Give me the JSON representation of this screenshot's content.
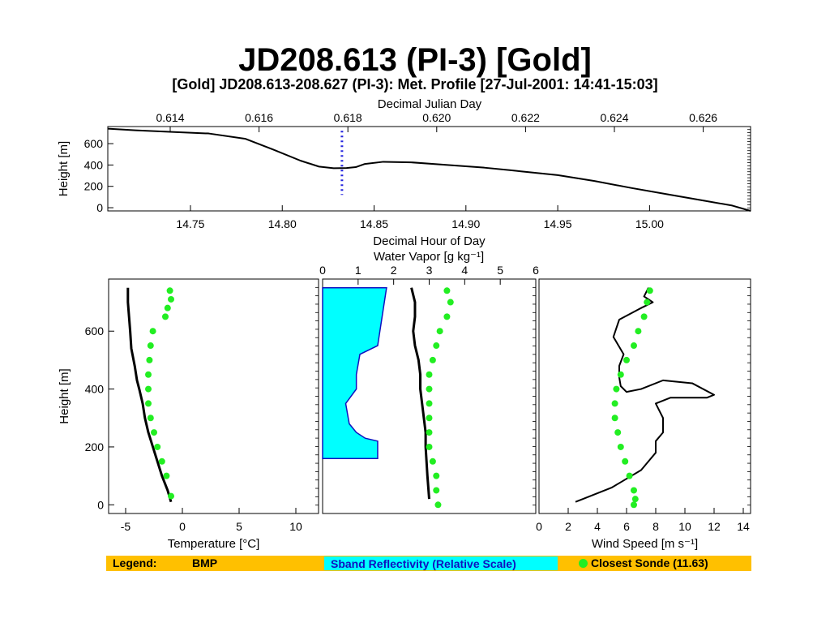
{
  "page": {
    "big_title": "JD208.613 (PI-3) [Gold]"
  },
  "colors": {
    "sonde": "#22EE22",
    "sband_fill": "#00FFFF",
    "sband_stroke": "#1010C0",
    "legend_bg": "#FFC000",
    "profile_line": "#000000",
    "marker_dotted": "#2222DD"
  },
  "legend": {
    "label": "Legend:",
    "bmp": "BMP",
    "sband": "Sband Reflectivity (Relative Scale)",
    "sonde": "Closest Sonde (11.63)"
  },
  "chart_data": [
    {
      "id": "height-timeseries",
      "type": "line",
      "title": "[Gold] JD208.613-208.627 (PI-3): Met. Profile [27-Jul-2001: 14:41-15:03]",
      "xlabel": "Decimal Hour of Day",
      "x2label": "Decimal Julian Day",
      "ylabel": "Height [m]",
      "xlim": [
        14.705,
        15.055
      ],
      "ylim": [
        -30,
        760
      ],
      "xticks": [
        14.75,
        14.8,
        14.85,
        14.9,
        14.95,
        15.0
      ],
      "xtick_labels": [
        "14.75",
        "14.80",
        "14.85",
        "14.90",
        "14.95",
        "15.00"
      ],
      "x2ticks": [
        0.614,
        0.616,
        0.618,
        0.62,
        0.622,
        0.624,
        0.626
      ],
      "x2tick_labels": [
        "0.614",
        "0.616",
        "0.618",
        "0.620",
        "0.622",
        "0.624",
        "0.626"
      ],
      "yticks": [
        0,
        200,
        400,
        600
      ],
      "ytick_labels": [
        "0",
        "200",
        "400",
        "600"
      ],
      "series": [
        {
          "x": [
            14.705,
            14.72,
            14.74,
            14.76,
            14.78,
            14.795,
            14.81,
            14.82,
            14.828,
            14.835,
            14.84,
            14.845,
            14.855,
            14.87,
            14.89,
            14.91,
            14.925,
            14.93,
            14.95,
            14.97,
            14.99,
            15.01,
            15.03,
            15.045,
            15.055
          ],
          "y": [
            740,
            725,
            710,
            695,
            645,
            545,
            440,
            385,
            370,
            372,
            380,
            410,
            430,
            425,
            400,
            375,
            350,
            340,
            305,
            250,
            185,
            125,
            65,
            20,
            -30
          ]
        }
      ],
      "marker_line": {
        "x": 14.8325,
        "y_range": [
          120,
          720
        ]
      }
    },
    {
      "id": "temperature-profile",
      "type": "line",
      "xlabel": "Temperature [°C]",
      "ylabel": "Height [m]",
      "xlim": [
        -6.5,
        12
      ],
      "ylim": [
        -30,
        780
      ],
      "xticks": [
        -5,
        0,
        5,
        10
      ],
      "xtick_labels": [
        "-5",
        "0",
        "5",
        "10"
      ],
      "yticks": [
        0,
        200,
        400,
        600
      ],
      "ytick_labels": [
        "0",
        "200",
        "400",
        "600"
      ],
      "series": [
        {
          "name": "BMP",
          "x": [
            -4.8,
            -4.8,
            -4.7,
            -4.6,
            -4.5,
            -4.2,
            -4.0,
            -3.8,
            -3.5,
            -3.3,
            -3.0,
            -2.6,
            -2.2,
            -1.8,
            -1.3,
            -1.0
          ],
          "y": [
            750,
            700,
            650,
            600,
            540,
            480,
            430,
            400,
            350,
            300,
            250,
            200,
            150,
            100,
            50,
            10
          ]
        },
        {
          "name": "Closest Sonde (11.63)",
          "x": [
            -1.1,
            -1.0,
            -1.3,
            -1.5,
            -2.6,
            -2.8,
            -2.9,
            -3.0,
            -3.0,
            -3.0,
            -2.8,
            -2.5,
            -2.2,
            -1.8,
            -1.4,
            -1.0
          ],
          "y": [
            740,
            710,
            680,
            650,
            600,
            550,
            500,
            450,
            400,
            350,
            300,
            250,
            200,
            150,
            100,
            30
          ]
        }
      ]
    },
    {
      "id": "water-vapor-profile",
      "type": "line",
      "x2label": "Water Vapor [g kg⁻¹]",
      "xlim": [
        0,
        6
      ],
      "ylim": [
        -30,
        780
      ],
      "xticks": [
        0,
        1,
        2,
        3,
        4,
        5,
        6
      ],
      "xtick_labels": [
        "0",
        "1",
        "2",
        "3",
        "4",
        "5",
        "6"
      ],
      "sband": {
        "x": [
          1.8,
          1.55,
          1.05,
          0.95,
          0.95,
          0.65,
          0.75,
          0.95,
          1.2,
          1.55,
          1.55
        ],
        "y": [
          750,
          550,
          520,
          450,
          400,
          350,
          280,
          250,
          230,
          220,
          160
        ]
      },
      "series": [
        {
          "name": "BMP",
          "x": [
            2.5,
            2.6,
            2.6,
            2.55,
            2.6,
            2.7,
            2.75,
            2.75,
            2.8,
            2.85,
            2.9,
            2.9,
            2.95,
            3.0
          ],
          "y": [
            750,
            700,
            650,
            600,
            550,
            500,
            450,
            400,
            350,
            300,
            250,
            200,
            100,
            20
          ]
        },
        {
          "name": "Closest Sonde (11.63)",
          "x": [
            3.5,
            3.6,
            3.5,
            3.3,
            3.2,
            3.1,
            3.0,
            3.0,
            3.0,
            3.0,
            3.0,
            3.0,
            3.1,
            3.2,
            3.2,
            3.25
          ],
          "y": [
            740,
            700,
            650,
            600,
            550,
            500,
            450,
            400,
            350,
            300,
            250,
            200,
            150,
            100,
            50,
            0
          ]
        }
      ]
    },
    {
      "id": "wind-speed-profile",
      "type": "line",
      "xlabel": "Wind Speed [m s⁻¹]",
      "xlim": [
        0,
        14.5
      ],
      "ylim": [
        -30,
        780
      ],
      "xticks": [
        0,
        2,
        4,
        6,
        8,
        10,
        12,
        14
      ],
      "xtick_labels": [
        "0",
        "2",
        "4",
        "6",
        "8",
        "10",
        "12",
        "14"
      ],
      "series": [
        {
          "name": "BMP",
          "x": [
            7.5,
            7.2,
            7.8,
            7.0,
            5.5,
            5.1,
            5.8,
            5.5,
            5.5,
            5.6,
            6.0,
            7.0,
            8.5,
            10.5,
            12.0,
            11.5,
            9.0,
            8.0,
            8.5,
            8.5,
            8.0,
            8.0,
            7.5,
            7.0,
            6.0,
            5.0,
            4.0,
            3.0,
            2.5
          ],
          "y": [
            750,
            720,
            700,
            680,
            640,
            580,
            520,
            480,
            440,
            410,
            390,
            400,
            430,
            420,
            380,
            370,
            370,
            350,
            300,
            250,
            220,
            180,
            150,
            120,
            90,
            60,
            40,
            20,
            10
          ]
        },
        {
          "name": "Closest Sonde (11.63)",
          "x": [
            7.6,
            7.4,
            7.2,
            6.8,
            6.5,
            6.0,
            5.6,
            5.3,
            5.2,
            5.2,
            5.4,
            5.6,
            5.9,
            6.2,
            6.5,
            6.6,
            6.5
          ],
          "y": [
            740,
            700,
            650,
            600,
            550,
            500,
            450,
            400,
            350,
            300,
            250,
            200,
            150,
            100,
            50,
            20,
            0
          ]
        }
      ]
    }
  ]
}
